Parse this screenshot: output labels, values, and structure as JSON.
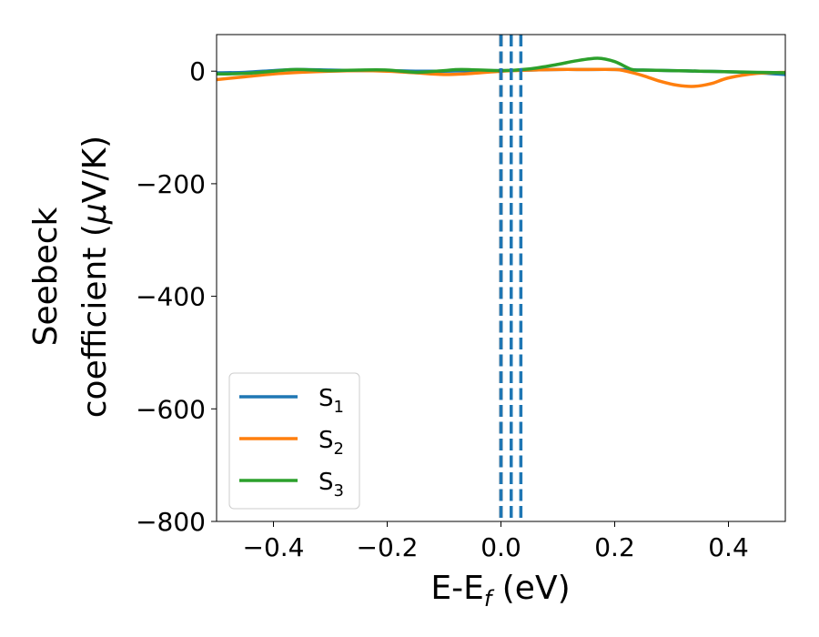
{
  "chart_data": {
    "type": "line",
    "title": "",
    "xlabel": "E-E",
    "xlabel_sub": "f",
    "xlabel_unit": " (eV)",
    "ylabel_line1": "Seebeck",
    "ylabel_line2": "coefficient  (",
    "ylabel_mu": "μ",
    "ylabel_unit": "V/K)",
    "xlim": [
      -0.5,
      0.5
    ],
    "ylim": [
      -800,
      65
    ],
    "xticks": [
      -0.4,
      -0.2,
      0.0,
      0.2,
      0.4
    ],
    "xtick_labels": [
      "−0.4",
      "−0.2",
      "0.0",
      "0.2",
      "0.4"
    ],
    "yticks": [
      0,
      -200,
      -400,
      -600,
      -800
    ],
    "ytick_labels": [
      "0",
      "−200",
      "−400",
      "−600",
      "−800"
    ],
    "legend_position": "lower-left",
    "series": [
      {
        "name": "S",
        "name_sub": "1",
        "color": "#1f77b4",
        "x": [
          -0.5,
          -0.45,
          -0.4,
          -0.36,
          -0.3,
          -0.25,
          -0.2,
          -0.15,
          -0.1,
          -0.05,
          0.0,
          0.05,
          0.1,
          0.15,
          0.2,
          0.25,
          0.3,
          0.35,
          0.4,
          0.45,
          0.5
        ],
        "y": [
          -3,
          -2,
          1,
          3,
          2,
          1,
          1,
          0,
          0,
          1,
          1,
          2,
          3,
          3,
          3,
          2,
          1,
          0,
          -1,
          -3,
          -6
        ]
      },
      {
        "name": "S",
        "name_sub": "2",
        "color": "#ff7f0e",
        "x": [
          -0.5,
          -0.45,
          -0.4,
          -0.35,
          -0.3,
          -0.25,
          -0.2,
          -0.15,
          -0.1,
          -0.05,
          0.0,
          0.05,
          0.1,
          0.15,
          0.2,
          0.22,
          0.25,
          0.28,
          0.31,
          0.34,
          0.37,
          0.4,
          0.45,
          0.5
        ],
        "y": [
          -15,
          -10,
          -5,
          -2,
          0,
          1,
          0,
          -3,
          -6,
          -4,
          0,
          2,
          3,
          3,
          3,
          0,
          -8,
          -18,
          -25,
          -27,
          -22,
          -12,
          -4,
          -2
        ]
      },
      {
        "name": "S",
        "name_sub": "3",
        "color": "#2ca02c",
        "x": [
          -0.5,
          -0.45,
          -0.4,
          -0.36,
          -0.3,
          -0.25,
          -0.2,
          -0.15,
          -0.1,
          -0.07,
          0.0,
          0.05,
          0.1,
          0.13,
          0.17,
          0.2,
          0.23,
          0.25,
          0.3,
          0.35,
          0.4,
          0.45,
          0.5
        ],
        "y": [
          -5,
          -4,
          0,
          3,
          1,
          2,
          2,
          -2,
          1,
          3,
          1,
          4,
          12,
          18,
          23,
          17,
          3,
          2,
          1,
          0,
          -1,
          -2,
          -3
        ]
      }
    ],
    "vlines": [
      {
        "x": 0.0,
        "color": "#000000",
        "style": "dashed"
      },
      {
        "x": 0.0,
        "color": "#1f77b4",
        "style": "dashed"
      },
      {
        "x": 0.018,
        "color": "#1f77b4",
        "style": "dashed"
      },
      {
        "x": 0.035,
        "color": "#1f77b4",
        "style": "dashed"
      }
    ]
  }
}
